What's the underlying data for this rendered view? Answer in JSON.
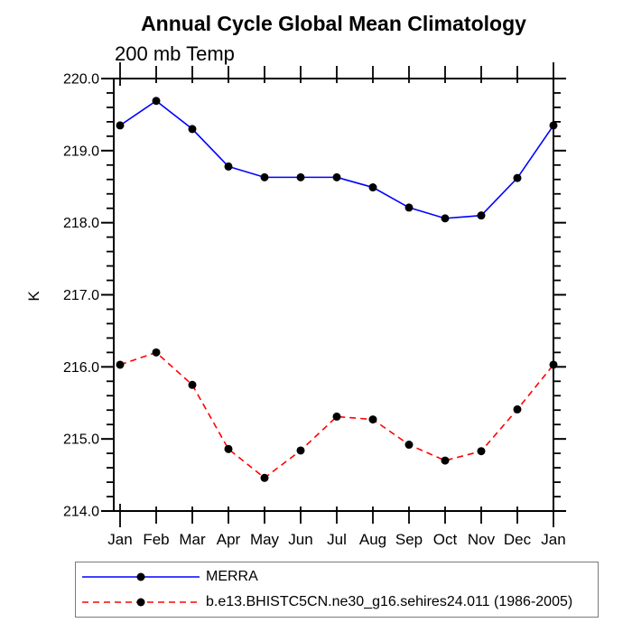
{
  "chart_data": {
    "type": "line",
    "title": "Annual Cycle Global Mean Climatology",
    "subtitle": "200 mb Temp",
    "ylabel": "K",
    "categories": [
      "Jan",
      "Feb",
      "Mar",
      "Apr",
      "May",
      "Jun",
      "Jul",
      "Aug",
      "Sep",
      "Oct",
      "Nov",
      "Dec",
      "Jan"
    ],
    "ylim": [
      214.0,
      220.0
    ],
    "ytick_step": 1.0,
    "yminor_step": 0.2,
    "ytick_labels": [
      "220.0",
      "219.0",
      "218.0",
      "217.0",
      "216.0",
      "215.0",
      "214.0"
    ],
    "grid": false,
    "legend_position": "bottom-left",
    "axis_color": "#000000",
    "marker_color": "#000000",
    "series": [
      {
        "name": "MERRA",
        "color": "#0000ff",
        "line_style": "solid",
        "marker": "filled-circle",
        "values": [
          219.35,
          219.69,
          219.3,
          218.78,
          218.63,
          218.63,
          218.63,
          218.49,
          218.21,
          218.06,
          218.1,
          218.62,
          219.35
        ]
      },
      {
        "name": "b.e13.BHISTC5CN.ne30_g16.sehires24.011 (1986-2005)",
        "color": "#ff0000",
        "line_style": "dashed",
        "marker": "filled-circle",
        "values": [
          216.03,
          216.2,
          215.75,
          214.86,
          214.46,
          214.84,
          215.31,
          215.27,
          214.92,
          214.7,
          214.83,
          215.41,
          216.03
        ]
      }
    ]
  }
}
